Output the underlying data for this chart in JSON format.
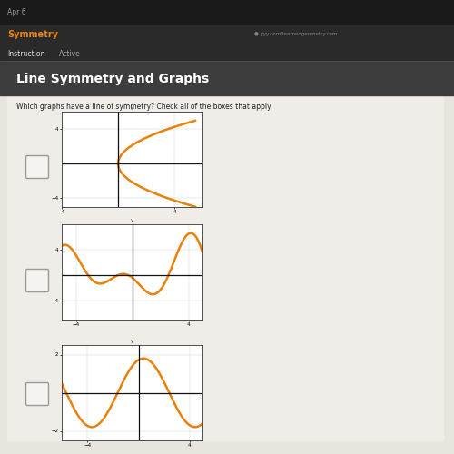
{
  "title": "Line Symmetry and Graphs",
  "question": "Which graphs have a line of symmetry? Check all of the boxes that apply.",
  "orange_color": "#e8820a",
  "graph_bg": "#ffffff",
  "axis_color": "#111111",
  "grid_color": "#cccccc",
  "page_bg": "#c8c0b0",
  "content_bg": "#e8e4de",
  "nav_bg": "#2a2a2a",
  "title_bg": "#3d3d3d",
  "tab_bg": "#2a2a2a",
  "graph1_xlim": [
    -5,
    6
  ],
  "graph1_ylim": [
    -5,
    6
  ],
  "graph2_xlim": [
    -5,
    5
  ],
  "graph2_ylim": [
    -7,
    8
  ],
  "graph3_xlim": [
    -6,
    5
  ],
  "graph3_ylim": [
    -2.5,
    2.5
  ]
}
